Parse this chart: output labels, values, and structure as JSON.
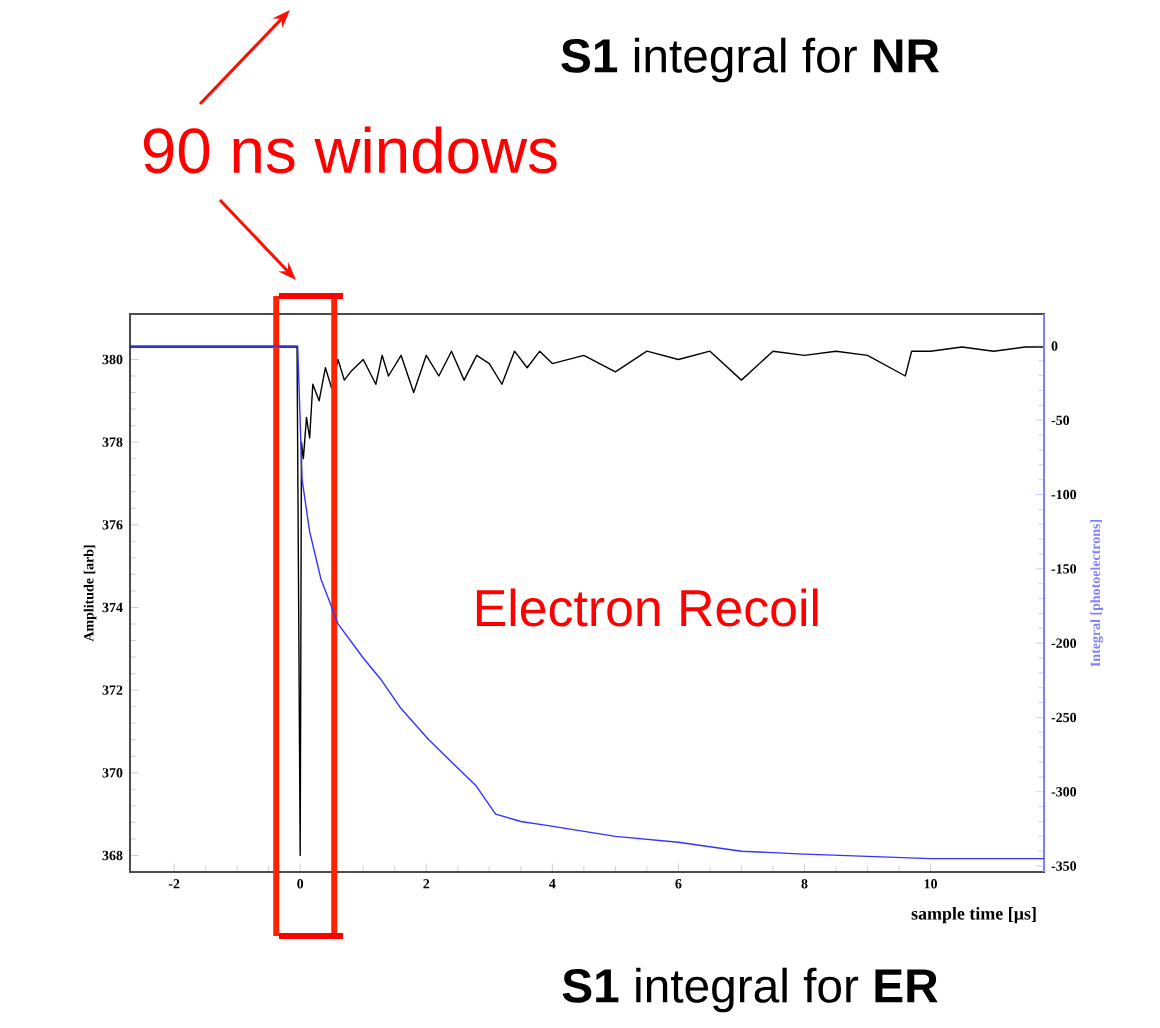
{
  "chart_data": {
    "type": "line",
    "xlabel": "sample time [µs]",
    "ylabel": "Amplitude [arb]",
    "y2label": "Integral [photoelectrons]",
    "annotations": [
      "**S1** integral for **NR**",
      "90 ns windows",
      "Electron Recoil",
      "**S1** integral for **ER**"
    ],
    "xlim": [
      -2.7,
      11.8
    ],
    "xticks": [
      -2,
      0,
      2,
      4,
      6,
      8,
      10
    ],
    "ylim": [
      367.6,
      381.1
    ],
    "yticks": [
      368,
      370,
      372,
      374,
      376,
      378,
      380
    ],
    "y2lim": [
      -354,
      21.5
    ],
    "ref_lines": [
      {
        "axis": "x",
        "value": -0.38,
        "color": "#ff2200"
      },
      {
        "axis": "x",
        "value": 0.54,
        "color": "#ff2200"
      }
    ],
    "y2ticks": [
      0,
      -50,
      -100,
      -150,
      -200,
      -250,
      -300,
      -350
    ],
    "series": [
      {
        "color": "#000000",
        "x": [
          -2.7,
          -0.05,
          0,
          0.02,
          0.05,
          0.1,
          0.15,
          0.2,
          0.3,
          0.4,
          0.5,
          0.6,
          0.7,
          0.8,
          1.0,
          1.2,
          1.3,
          1.4,
          1.6,
          1.8,
          2.0,
          2.2,
          2.4,
          2.6,
          2.8,
          3.0,
          3.2,
          3.4,
          3.6,
          3.8,
          4.0,
          4.5,
          5.0,
          5.5,
          6.0,
          6.5,
          7.0,
          7.5,
          8.0,
          8.5,
          9.0,
          9.6,
          9.7,
          10.0,
          10.5,
          11.0,
          11.5,
          11.8
        ],
        "values": [
          380.3,
          380.3,
          368.0,
          378.0,
          377.6,
          378.6,
          378.1,
          379.4,
          379.0,
          379.8,
          379.3,
          380.0,
          379.5,
          379.7,
          380.0,
          379.4,
          380.1,
          379.6,
          380.1,
          379.2,
          380.1,
          379.6,
          380.2,
          379.5,
          380.1,
          379.9,
          379.4,
          380.2,
          379.8,
          380.2,
          379.9,
          380.1,
          379.7,
          380.2,
          380.0,
          380.2,
          379.5,
          380.2,
          380.1,
          380.2,
          380.1,
          379.6,
          380.2,
          380.2,
          380.3,
          380.2,
          380.3,
          380.3
        ]
      },
      {
        "color": "#3333ff",
        "axis": "y2",
        "x": [
          -2.7,
          -0.04,
          0.03,
          0.15,
          0.33,
          0.6,
          1.0,
          1.29,
          1.6,
          2.04,
          2.4,
          2.79,
          3.1,
          3.5,
          3.96,
          5.0,
          6.0,
          7.0,
          8.0,
          10.0,
          11.8
        ],
        "values": [
          0,
          0,
          -90,
          -125,
          -157,
          -187,
          -210,
          -225,
          -244,
          -265,
          -280,
          -296,
          -315,
          -320,
          -323,
          -330,
          -334,
          -340,
          -342,
          -345,
          -345
        ]
      }
    ]
  }
}
